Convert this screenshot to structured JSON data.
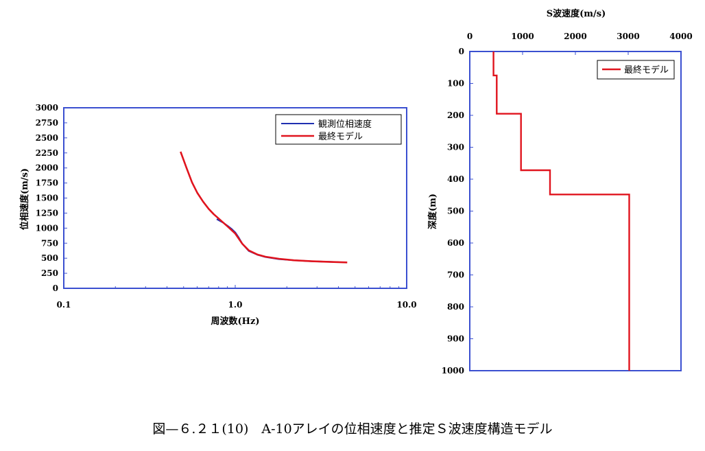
{
  "charts": [
    {
      "type": "line",
      "ylabel": "位相速度(m/s)",
      "xlabel": "周波数(Hz)",
      "x_scale": "log",
      "xlim": [
        0.1,
        10.0
      ],
      "ylim": [
        0,
        3000
      ],
      "x_tick_labels": [
        "0.1",
        "1.0",
        "10.0"
      ],
      "y_tick_labels": [
        "0",
        "250",
        "500",
        "750",
        "1000",
        "1250",
        "1500",
        "1750",
        "2000",
        "2250",
        "2500",
        "2750",
        "3000"
      ],
      "grid": false,
      "legend_position": "top-right",
      "series": [
        {
          "name": "観測位相速度",
          "color": "#1f2fb0",
          "x": [
            0.78,
            0.85,
            0.9,
            0.95,
            1.0,
            1.05,
            1.1,
            1.2,
            1.35,
            1.5,
            1.8,
            2.2,
            2.8,
            3.5,
            4.0
          ],
          "y": [
            1150,
            1090,
            1040,
            990,
            930,
            840,
            740,
            620,
            555,
            520,
            485,
            465,
            450,
            440,
            435
          ]
        },
        {
          "name": "最終モデル",
          "color": "#e0141e",
          "x": [
            0.48,
            0.52,
            0.56,
            0.6,
            0.65,
            0.7,
            0.75,
            0.8,
            0.9,
            1.0,
            1.1,
            1.2,
            1.35,
            1.5,
            1.8,
            2.2,
            2.8,
            3.5,
            4.5
          ],
          "y": [
            2270,
            2000,
            1760,
            1590,
            1440,
            1320,
            1230,
            1160,
            1030,
            910,
            740,
            630,
            560,
            525,
            490,
            465,
            450,
            440,
            430
          ]
        }
      ]
    },
    {
      "type": "line",
      "title": "S波速度(m/s)",
      "ylabel": "深度(m)",
      "xlim": [
        0,
        4000
      ],
      "ylim": [
        0,
        1000
      ],
      "y_inverted": true,
      "x_axis_position": "top",
      "x_tick_labels": [
        "0",
        "1000",
        "2000",
        "3000",
        "4000"
      ],
      "y_tick_labels": [
        "0",
        "100",
        "200",
        "300",
        "400",
        "500",
        "600",
        "700",
        "800",
        "900",
        "1000"
      ],
      "grid": false,
      "legend_position": "top-right",
      "series": [
        {
          "name": "最終モデル",
          "color": "#e0141e",
          "x": [
            450,
            450,
            510,
            510,
            970,
            970,
            1520,
            1520,
            3020,
            3020
          ],
          "y": [
            0,
            75,
            75,
            195,
            195,
            372,
            372,
            448,
            448,
            1000
          ]
        }
      ]
    }
  ],
  "caption": "図—６.２１(10)　A-10アレイの位相速度と推定Ｓ波速度構造モデル"
}
